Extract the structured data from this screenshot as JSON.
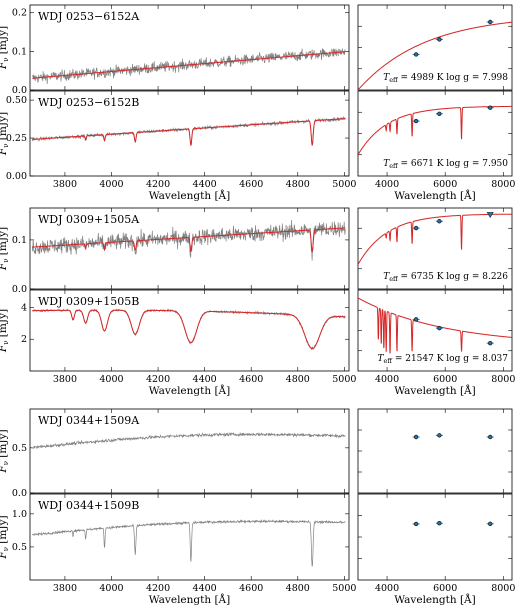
{
  "chart_data": [
    {
      "type": "line",
      "panel": "spectrum",
      "star": "WDJ 0253−6152A",
      "ylabel": "F_ν [mJy]",
      "ylabel_parts": [
        "F",
        "ν",
        " [mJy]"
      ],
      "xlim": [
        3650,
        5020
      ],
      "ylim": [
        0,
        0.22
      ],
      "yticks": [
        0.0,
        0.1,
        0.2
      ],
      "ytick_labels": [
        "0.0",
        "0.1",
        "0.2"
      ],
      "xticks": [
        3800,
        4000,
        4200,
        4400,
        4600,
        4800,
        5000
      ],
      "show_xticklabels": false,
      "xlabel": "",
      "cont": {
        "a": 0.03,
        "b": 0.1
      },
      "noise": 0.01,
      "lines": [],
      "model": true
    },
    {
      "type": "scatter",
      "panel": "sed",
      "xlim": [
        3000,
        8300
      ],
      "ylim": [
        0,
        0.22
      ],
      "xticks": [
        4000,
        6000,
        8000
      ],
      "show_xticklabels": false,
      "points": [
        {
          "x": 5000,
          "y": 0.092
        },
        {
          "x": 5800,
          "y": 0.131
        },
        {
          "x": 7550,
          "y": 0.176
        }
      ],
      "upper_limits": [],
      "ann_parts": [
        "T",
        "eff",
        " = 4989 K  log g = 7.998"
      ],
      "model": {
        "shape": "rise",
        "ymin": 0.0,
        "ymax": 0.195,
        "k": 2300,
        "lines": []
      }
    },
    {
      "type": "line",
      "panel": "spectrum",
      "star": "WDJ 0253−6152B",
      "ylabel": "F_ν [mJy]",
      "ylabel_parts": [
        "F",
        "ν",
        " [mJy]"
      ],
      "xlim": [
        3650,
        5020
      ],
      "ylim": [
        0,
        0.56
      ],
      "yticks": [
        0.0,
        0.25,
        0.5
      ],
      "ytick_labels": [
        "0.00",
        "0.25",
        "0.50"
      ],
      "xticks": [
        3800,
        4000,
        4200,
        4400,
        4600,
        4800,
        5000
      ],
      "show_xticklabels": true,
      "xlabel": "Wavelength [Å]",
      "cont": {
        "a": 0.24,
        "b": 0.38
      },
      "noise": 0.008,
      "lines": [
        {
          "x": 3889,
          "d": 0.03,
          "w": 3
        },
        {
          "x": 3970,
          "d": 0.04,
          "w": 4
        },
        {
          "x": 4102,
          "d": 0.06,
          "w": 5
        },
        {
          "x": 4341,
          "d": 0.11,
          "w": 5
        },
        {
          "x": 4862,
          "d": 0.16,
          "w": 6
        }
      ],
      "model": true
    },
    {
      "type": "scatter",
      "panel": "sed",
      "xlim": [
        3000,
        8300
      ],
      "ylim": [
        0,
        0.56
      ],
      "xticks": [
        4000,
        6000,
        8000
      ],
      "xtick_labels": [
        "4000",
        "6000",
        "8000"
      ],
      "show_xticklabels": true,
      "xlabel": "Wavelength [Å]",
      "points": [
        {
          "x": 5000,
          "y": 0.362
        },
        {
          "x": 5800,
          "y": 0.41
        },
        {
          "x": 7550,
          "y": 0.45
        }
      ],
      "upper_limits": [],
      "ann_parts": [
        "T",
        "eff",
        " = 6671 K  log g = 7.950"
      ],
      "model": {
        "shape": "plateau",
        "ymin": 0.14,
        "ymax": 0.46,
        "k": 1000,
        "lines": [
          {
            "x": 3970,
            "d": 0.04
          },
          {
            "x": 4102,
            "d": 0.06
          },
          {
            "x": 4341,
            "d": 0.1
          },
          {
            "x": 4862,
            "d": 0.15
          },
          {
            "x": 6563,
            "d": 0.21
          }
        ]
      }
    },
    {
      "type": "line",
      "panel": "spectrum",
      "star": "WDJ 0309+1505A",
      "ylabel": "F_ν [mJy]",
      "ylabel_parts": [
        "F",
        "ν",
        " [mJy]"
      ],
      "xlim": [
        3650,
        5020
      ],
      "ylim": [
        0,
        0.165
      ],
      "yticks": [
        0.0,
        0.1
      ],
      "ytick_labels": [
        "0.0",
        "0.1"
      ],
      "xticks": [
        3800,
        4000,
        4200,
        4400,
        4600,
        4800,
        5000
      ],
      "show_xticklabels": false,
      "xlabel": "",
      "cont": {
        "a": 0.085,
        "b": 0.125
      },
      "noise": 0.012,
      "lines": [
        {
          "x": 3889,
          "d": 0.01,
          "w": 3
        },
        {
          "x": 3970,
          "d": 0.014,
          "w": 4
        },
        {
          "x": 4102,
          "d": 0.02,
          "w": 5
        },
        {
          "x": 4341,
          "d": 0.03,
          "w": 5
        },
        {
          "x": 4862,
          "d": 0.045,
          "w": 6
        }
      ],
      "model": true
    },
    {
      "type": "scatter",
      "panel": "sed",
      "xlim": [
        3000,
        8300
      ],
      "ylim": [
        0,
        0.165
      ],
      "xticks": [
        4000,
        6000,
        8000
      ],
      "show_xticklabels": false,
      "points": [
        {
          "x": 5000,
          "y": 0.124
        },
        {
          "x": 5800,
          "y": 0.138
        }
      ],
      "upper_limits": [
        {
          "x": 7550,
          "y": 0.152
        }
      ],
      "ann_parts": [
        "T",
        "eff",
        " = 6735 K  log g = 8.226"
      ],
      "model": {
        "shape": "plateau",
        "ymin": 0.05,
        "ymax": 0.153,
        "k": 1000,
        "lines": [
          {
            "x": 3970,
            "d": 0.01
          },
          {
            "x": 4102,
            "d": 0.02
          },
          {
            "x": 4341,
            "d": 0.03
          },
          {
            "x": 4862,
            "d": 0.045
          },
          {
            "x": 6563,
            "d": 0.07
          }
        ]
      }
    },
    {
      "type": "line",
      "panel": "spectrum",
      "star": "WDJ 0309+1505B",
      "ylabel": "F_ν [mJy]",
      "ylabel_parts": [
        "F",
        "ν",
        " [mJy]"
      ],
      "xlim": [
        3650,
        5020
      ],
      "ylim": [
        0,
        5.1
      ],
      "yticks": [
        2,
        4
      ],
      "ytick_labels": [
        "2",
        "4"
      ],
      "xticks": [
        3800,
        4000,
        4200,
        4400,
        4600,
        4800,
        5000
      ],
      "xtick_labels": [
        "3800",
        "4000",
        "4200",
        "4400",
        "4600",
        "4800",
        "5000"
      ],
      "show_xticklabels": true,
      "xlabel": "Wavelength [Å]",
      "cont": {
        "a": 3.8,
        "b": 3.4,
        "hump": 0.3
      },
      "noise": 0.05,
      "lines": [
        {
          "x": 3835,
          "d": 0.6,
          "w": 8
        },
        {
          "x": 3889,
          "d": 0.8,
          "w": 12
        },
        {
          "x": 3970,
          "d": 1.3,
          "w": 18
        },
        {
          "x": 4102,
          "d": 1.5,
          "w": 25
        },
        {
          "x": 4341,
          "d": 2.0,
          "w": 35
        },
        {
          "x": 4862,
          "d": 2.1,
          "w": 45
        }
      ],
      "model": true
    },
    {
      "type": "scatter",
      "panel": "sed",
      "xlim": [
        3000,
        8300
      ],
      "ylim": [
        0,
        5.1
      ],
      "xticks": [
        4000,
        6000,
        8000
      ],
      "xtick_labels": [
        "4000",
        "6000",
        "8000"
      ],
      "show_xticklabels": true,
      "xlabel": "Wavelength [Å]",
      "points": [
        {
          "x": 5000,
          "y": 3.25
        },
        {
          "x": 5800,
          "y": 2.7
        },
        {
          "x": 7550,
          "y": 1.75
        }
      ],
      "upper_limits": [],
      "ann_parts": [
        "T",
        "eff",
        " = 21547 K  log g = 8.037"
      ],
      "model": {
        "shape": "fall",
        "ymin": 1.6,
        "ymax": 4.6,
        "k": 3000,
        "lines": [
          {
            "x": 3700,
            "d": 2.0
          },
          {
            "x": 3800,
            "d": 2.2
          },
          {
            "x": 3889,
            "d": 2.4
          },
          {
            "x": 3970,
            "d": 2.6
          },
          {
            "x": 4102,
            "d": 2.6
          },
          {
            "x": 4341,
            "d": 2.3
          },
          {
            "x": 4862,
            "d": 2.0
          },
          {
            "x": 6563,
            "d": 1.3
          }
        ]
      }
    },
    {
      "type": "line",
      "panel": "spectrum",
      "star": "WDJ 0344+1509A",
      "ylabel": "F_ν [mJy]",
      "ylabel_parts": [
        "F",
        "ν",
        " [mJy]"
      ],
      "xlim": [
        3650,
        5020
      ],
      "ylim": [
        0,
        0.93
      ],
      "yticks": [
        0.0,
        0.5
      ],
      "ytick_labels": [
        "0.0",
        "0.5"
      ],
      "xticks": [
        3800,
        4000,
        4200,
        4400,
        4600,
        4800,
        5000
      ],
      "show_xticklabels": false,
      "xlabel": "",
      "cont": {
        "a": 0.5,
        "b": 0.63,
        "hump": 0.12
      },
      "noise": 0.012,
      "lines": [],
      "model": false
    },
    {
      "type": "scatter",
      "panel": "sed",
      "xlim": [
        3000,
        8300
      ],
      "ylim": [
        0,
        0.93
      ],
      "xticks": [
        4000,
        6000,
        8000
      ],
      "show_xticklabels": false,
      "points": [
        {
          "x": 5000,
          "y": 0.62
        },
        {
          "x": 5800,
          "y": 0.638
        },
        {
          "x": 7550,
          "y": 0.62
        }
      ],
      "upper_limits": [],
      "ann_parts": null,
      "model": null
    },
    {
      "type": "line",
      "panel": "spectrum",
      "star": "WDJ 0344+1509B",
      "ylabel": "F_ν [mJy]",
      "ylabel_parts": [
        "F",
        "ν",
        " [mJy]"
      ],
      "xlim": [
        3650,
        5020
      ],
      "ylim": [
        0,
        1.3
      ],
      "yticks": [
        0.5,
        1.0
      ],
      "ytick_labels": [
        "0.5",
        "1.0"
      ],
      "xticks": [
        3800,
        4000,
        4200,
        4400,
        4600,
        4800,
        5000
      ],
      "xtick_labels": [
        "3800",
        "4000",
        "4200",
        "4400",
        "4600",
        "4800",
        "5000"
      ],
      "show_xticklabels": true,
      "xlabel": "Wavelength [Å]",
      "cont": {
        "a": 0.68,
        "b": 0.87,
        "hump": 0.15
      },
      "noise": 0.012,
      "lines": [
        {
          "x": 3835,
          "d": 0.08,
          "w": 2
        },
        {
          "x": 3889,
          "d": 0.15,
          "w": 3
        },
        {
          "x": 3970,
          "d": 0.3,
          "w": 3
        },
        {
          "x": 4102,
          "d": 0.45,
          "w": 4
        },
        {
          "x": 4341,
          "d": 0.6,
          "w": 4
        },
        {
          "x": 4862,
          "d": 0.68,
          "w": 5
        }
      ],
      "model": false
    },
    {
      "type": "scatter",
      "panel": "sed",
      "xlim": [
        3000,
        8300
      ],
      "ylim": [
        0,
        1.3
      ],
      "xticks": [
        4000,
        6000,
        8000
      ],
      "xtick_labels": [
        "4000",
        "6000",
        "8000"
      ],
      "show_xticklabels": true,
      "xlabel": "Wavelength [Å]",
      "points": [
        {
          "x": 5000,
          "y": 0.848
        },
        {
          "x": 5800,
          "y": 0.858
        },
        {
          "x": 7550,
          "y": 0.85
        }
      ],
      "upper_limits": [],
      "ann_parts": null,
      "model": null
    }
  ],
  "colors": {
    "data": "#808080",
    "model": "#d62728",
    "point": "#1f77b4",
    "edge": "#222222"
  }
}
